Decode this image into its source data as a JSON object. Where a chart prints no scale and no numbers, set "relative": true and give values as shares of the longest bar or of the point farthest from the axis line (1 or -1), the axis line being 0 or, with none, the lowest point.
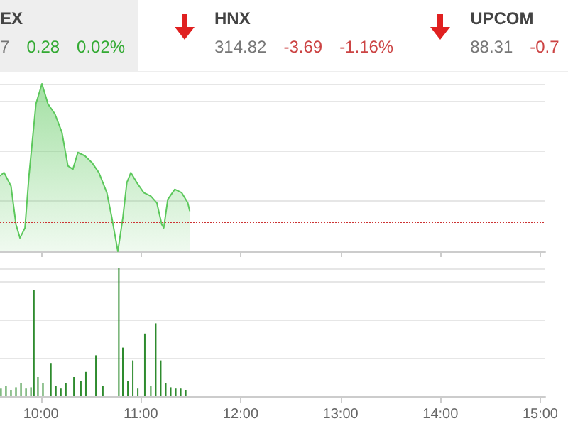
{
  "chart_data": [
    {
      "type": "other",
      "annotations": [
        "EX",
        "7",
        "0.28",
        "0.02%",
        "HNX",
        "314.82",
        "-3.69",
        "-1.16%",
        "UPCOM",
        "88.31",
        "-0.7"
      ]
    },
    {
      "type": "area",
      "relative": true,
      "grid": "y",
      "tick_labels": false,
      "xlim": [
        9.59,
        15.05
      ],
      "xticks": [
        {
          "value": 10,
          "label": null
        },
        {
          "value": 11,
          "label": null
        },
        {
          "value": 12,
          "label": null
        },
        {
          "value": 13,
          "label": null
        },
        {
          "value": 14,
          "label": null
        },
        {
          "value": 15,
          "label": null
        }
      ],
      "series": [
        {
          "color": "#5cc85c",
          "x": [
            9.59,
            9.63,
            9.7,
            9.75,
            9.79,
            9.84,
            9.88,
            9.95,
            10.01,
            10.07,
            10.14,
            10.21,
            10.27,
            10.32,
            10.37,
            10.44,
            10.51,
            10.58,
            10.66,
            10.71,
            10.77,
            10.82,
            10.86,
            10.9,
            10.96,
            11.03,
            11.1,
            11.16,
            11.21,
            11.23,
            11.27,
            11.34,
            11.41,
            11.47,
            11.49
          ],
          "values": [
            0.45,
            0.47,
            0.39,
            0.16,
            0.08,
            0.14,
            0.45,
            0.88,
            1.0,
            0.88,
            0.82,
            0.71,
            0.51,
            0.49,
            0.59,
            0.57,
            0.53,
            0.47,
            0.35,
            0.2,
            0,
            0.2,
            0.41,
            0.47,
            0.41,
            0.35,
            0.33,
            0.29,
            0.16,
            0.14,
            0.31,
            0.37,
            0.35,
            0.29,
            0.24
          ]
        }
      ],
      "ref_lines": [
        {
          "axis": "y",
          "value": 0.18,
          "color": "#cc3333",
          "line_style": "dotted"
        }
      ]
    },
    {
      "type": "bar",
      "relative": true,
      "grid": "y",
      "tick_labels": "x",
      "xlim": [
        9.59,
        15.05
      ],
      "xticks": [
        {
          "value": 10,
          "label": "10:00"
        },
        {
          "value": 11,
          "label": "11:00"
        },
        {
          "value": 12,
          "label": "12:00"
        },
        {
          "value": 13,
          "label": "13:00"
        },
        {
          "value": 14,
          "label": "14:00"
        },
        {
          "value": 15,
          "label": "15:00"
        }
      ],
      "series": [
        {
          "color": "#2e8b2e",
          "x": [
            9.6,
            9.65,
            9.7,
            9.75,
            9.8,
            9.85,
            9.9,
            9.93,
            9.97,
            10.02,
            10.1,
            10.15,
            10.2,
            10.25,
            10.33,
            10.4,
            10.45,
            10.55,
            10.62,
            10.78,
            10.82,
            10.87,
            10.92,
            10.97,
            11.04,
            11.1,
            11.15,
            11.2,
            11.25,
            11.3,
            11.35,
            11.4,
            11.45
          ],
          "values": [
            0.06,
            0.08,
            0.05,
            0.07,
            0.1,
            0.06,
            0.07,
            0.83,
            0.15,
            0.1,
            0.26,
            0.08,
            0.06,
            0.1,
            0.15,
            0.12,
            0.19,
            0.32,
            0.08,
            1.0,
            0.38,
            0.12,
            0.28,
            0.06,
            0.49,
            0.08,
            0.57,
            0.28,
            0.1,
            0.07,
            0.06,
            0.06,
            0.05
          ]
        }
      ]
    }
  ]
}
